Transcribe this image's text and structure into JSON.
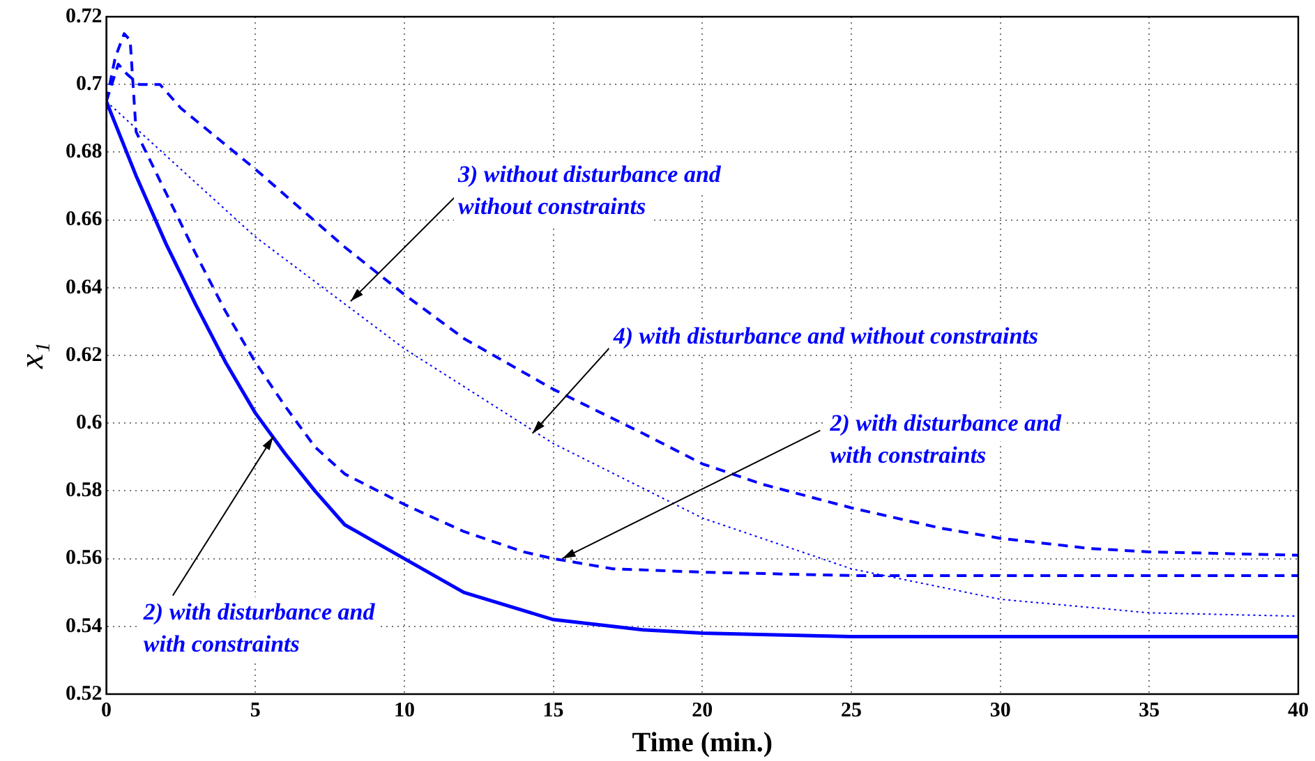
{
  "chart_data": {
    "type": "line",
    "xlabel": "Time (min.)",
    "ylabel": "x₁",
    "xlim": [
      0,
      40
    ],
    "ylim": [
      0.52,
      0.72
    ],
    "xticks": [
      0,
      5,
      10,
      15,
      20,
      25,
      30,
      35,
      40
    ],
    "yticks": [
      0.52,
      0.54,
      0.56,
      0.58,
      0.6,
      0.62,
      0.64,
      0.66,
      0.68,
      0.7,
      0.72
    ],
    "grid": true,
    "legend": false,
    "marker": "none",
    "series": [
      {
        "color": "#0000ff",
        "line_style": "solid",
        "x": [
          0,
          1,
          2,
          3,
          4,
          5,
          6,
          7,
          8,
          9,
          10,
          12,
          15,
          18,
          20,
          25,
          30,
          35,
          40
        ],
        "values": [
          0.695,
          0.673,
          0.653,
          0.635,
          0.618,
          0.603,
          0.591,
          0.58,
          0.57,
          0.565,
          0.56,
          0.55,
          0.542,
          0.539,
          0.538,
          0.537,
          0.537,
          0.537,
          0.537
        ]
      },
      {
        "color": "#0000ff",
        "line_style": "dashed",
        "x": [
          0,
          0.3,
          0.6,
          0.8,
          1,
          1.5,
          2,
          3,
          4,
          5,
          6,
          7,
          8,
          10,
          12,
          14,
          15,
          17,
          20,
          25,
          30,
          40
        ],
        "values": [
          0.695,
          0.708,
          0.715,
          0.713,
          0.686,
          0.677,
          0.668,
          0.65,
          0.633,
          0.618,
          0.605,
          0.593,
          0.585,
          0.576,
          0.568,
          0.562,
          0.56,
          0.557,
          0.556,
          0.555,
          0.555,
          0.555
        ]
      },
      {
        "color": "#0000ff",
        "line_style": "dashed",
        "x": [
          0,
          0.4,
          0.7,
          1.1,
          1.8,
          2.5,
          5,
          8,
          10,
          12,
          15,
          18,
          20,
          22,
          25,
          28,
          30,
          33,
          35,
          40
        ],
        "values": [
          0.695,
          0.706,
          0.703,
          0.7,
          0.7,
          0.693,
          0.675,
          0.652,
          0.638,
          0.625,
          0.61,
          0.597,
          0.588,
          0.582,
          0.575,
          0.569,
          0.566,
          0.563,
          0.562,
          0.561
        ]
      },
      {
        "color": "#0000ff",
        "line_style": "dotted",
        "x": [
          0,
          5,
          10,
          15,
          20,
          25,
          30,
          35,
          40
        ],
        "values": [
          0.695,
          0.655,
          0.622,
          0.594,
          0.572,
          0.557,
          0.548,
          0.544,
          0.543
        ]
      }
    ],
    "annotations": [
      {
        "text": "3) without disturbance and\nwithout constraints",
        "x": 8.2,
        "y": 0.636
      },
      {
        "text": "4) with disturbance and without constraints",
        "x": 14.3,
        "y": 0.597
      },
      {
        "text": "2) with disturbance and\nwith constraints",
        "x": 15.3,
        "y": 0.56
      },
      {
        "text": "2) with disturbance and\nwith constraints",
        "x": 5.6,
        "y": 0.596
      }
    ]
  }
}
